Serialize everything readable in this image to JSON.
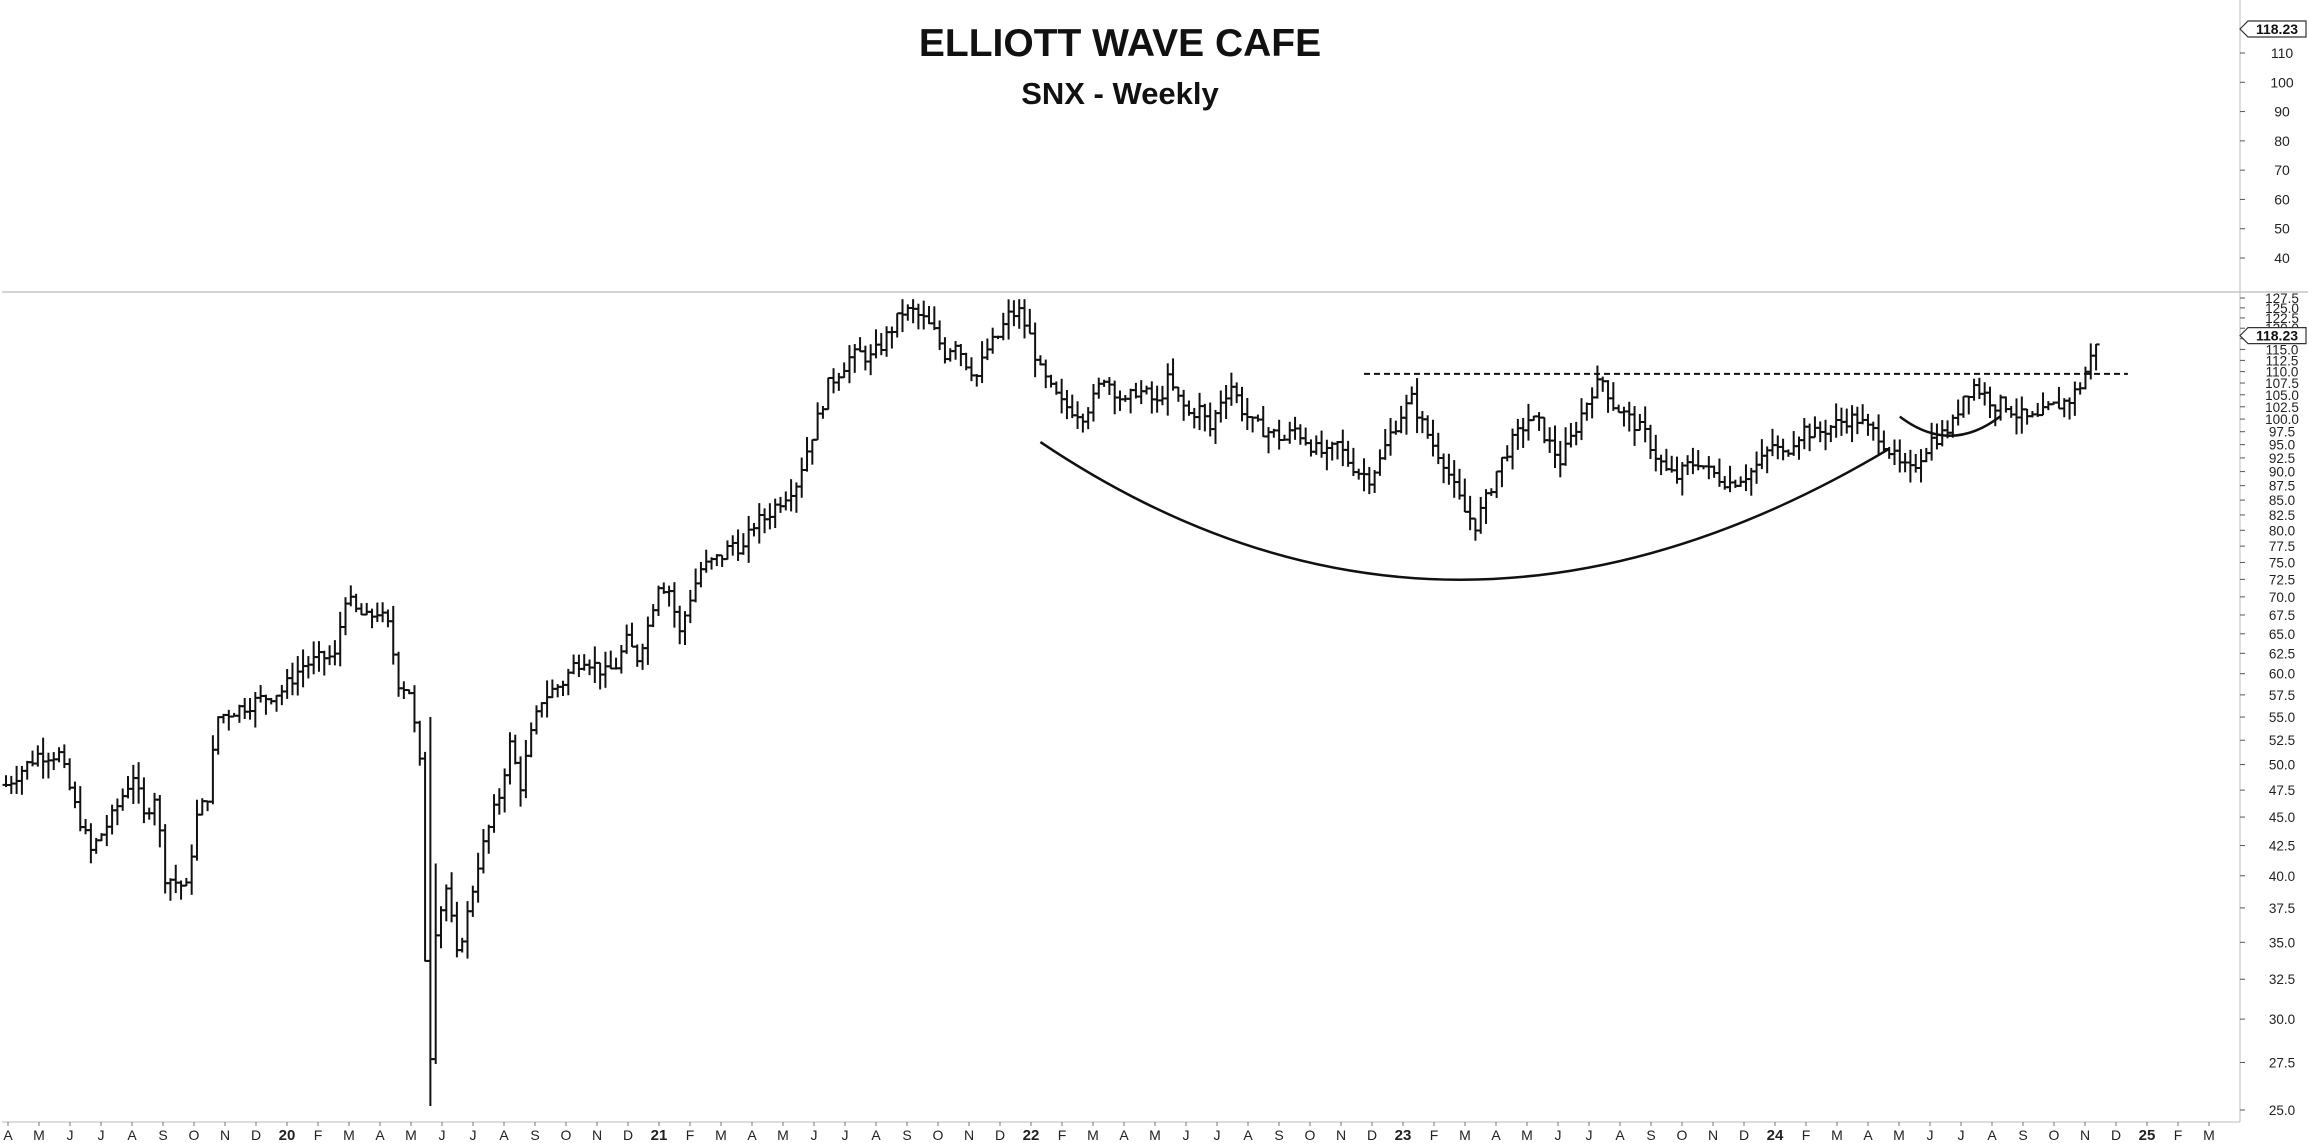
{
  "chart_data": {
    "type": "ohlc-bar",
    "title": "ELLIOTT WAVE CAFE",
    "subtitle": "SNX - Weekly",
    "upper_pane": {
      "yticks": [
        40,
        50,
        60,
        70,
        80,
        90,
        100,
        110
      ],
      "last_price_label": "118.23"
    },
    "lower_pane": {
      "scale": "log",
      "ylim": [
        25.0,
        127.5
      ],
      "yticks": [
        "25.0",
        "27.5",
        "30.0",
        "32.5",
        "35.0",
        "37.5",
        "40.0",
        "42.5",
        "45.0",
        "47.5",
        "50.0",
        "52.5",
        "55.0",
        "57.5",
        "60.0",
        "62.5",
        "65.0",
        "67.5",
        "70.0",
        "72.5",
        "75.0",
        "77.5",
        "80.0",
        "82.5",
        "85.0",
        "87.5",
        "90.0",
        "92.5",
        "95.0",
        "97.5",
        "100.0",
        "102.5",
        "105.0",
        "107.5",
        "110.0",
        "112.5",
        "115.0",
        "117.5",
        "120.0",
        "122.5",
        "125.0",
        "127.5"
      ],
      "last_price_label": "118.23",
      "resistance_level": 109.5,
      "cup_bottom_price": 72.5,
      "handle_bottom_price": 96.7
    },
    "x_axis_labels": [
      "A",
      "M",
      "J",
      "J",
      "A",
      "S",
      "O",
      "N",
      "D",
      "20",
      "F",
      "M",
      "A",
      "M",
      "J",
      "J",
      "A",
      "S",
      "O",
      "N",
      "D",
      "21",
      "F",
      "M",
      "A",
      "M",
      "J",
      "J",
      "A",
      "S",
      "O",
      "N",
      "D",
      "22",
      "F",
      "M",
      "A",
      "M",
      "J",
      "J",
      "A",
      "S",
      "O",
      "N",
      "D",
      "23",
      "F",
      "M",
      "A",
      "M",
      "J",
      "J",
      "A",
      "S",
      "O",
      "N",
      "D",
      "24",
      "F",
      "M",
      "A",
      "M",
      "J",
      "J",
      "A",
      "S",
      "O",
      "N",
      "D",
      "25",
      "F",
      "M"
    ],
    "x_axis_bold": [
      "20",
      "21",
      "22",
      "23",
      "24",
      "25"
    ],
    "weekly_close_path": [
      [
        0,
        48
      ],
      [
        6,
        51
      ],
      [
        10,
        51
      ],
      [
        13,
        46
      ],
      [
        16,
        42
      ],
      [
        20,
        45
      ],
      [
        22,
        47
      ],
      [
        24,
        49
      ],
      [
        26,
        45
      ],
      [
        28,
        47
      ],
      [
        30,
        40
      ],
      [
        34,
        39
      ],
      [
        36,
        45
      ],
      [
        38,
        47
      ],
      [
        40,
        55
      ],
      [
        44,
        56
      ],
      [
        48,
        57
      ],
      [
        52,
        58
      ],
      [
        56,
        61
      ],
      [
        60,
        62
      ],
      [
        62,
        62
      ],
      [
        64,
        70
      ],
      [
        66,
        68
      ],
      [
        68,
        67
      ],
      [
        70,
        68
      ],
      [
        72,
        66
      ],
      [
        74,
        59
      ],
      [
        76,
        58
      ],
      [
        78,
        50
      ],
      [
        79,
        34
      ],
      [
        80,
        28
      ],
      [
        81,
        36
      ],
      [
        83,
        39
      ],
      [
        85,
        34
      ],
      [
        87,
        37
      ],
      [
        89,
        41
      ],
      [
        91,
        44
      ],
      [
        93,
        47
      ],
      [
        95,
        52
      ],
      [
        97,
        48
      ],
      [
        99,
        53
      ],
      [
        101,
        57
      ],
      [
        103,
        58
      ],
      [
        105,
        59
      ],
      [
        107,
        61
      ],
      [
        109,
        62
      ],
      [
        111,
        61
      ],
      [
        113,
        60
      ],
      [
        115,
        61
      ],
      [
        117,
        64
      ],
      [
        119,
        62
      ],
      [
        121,
        66
      ],
      [
        123,
        72
      ],
      [
        125,
        71
      ],
      [
        127,
        65
      ],
      [
        129,
        70
      ],
      [
        131,
        74
      ],
      [
        133,
        75
      ],
      [
        135,
        76
      ],
      [
        137,
        78
      ],
      [
        139,
        77
      ],
      [
        141,
        81
      ],
      [
        143,
        82
      ],
      [
        145,
        84
      ],
      [
        147,
        86
      ],
      [
        149,
        88
      ],
      [
        151,
        94
      ],
      [
        153,
        100
      ],
      [
        155,
        107
      ],
      [
        157,
        110
      ],
      [
        159,
        113
      ],
      [
        161,
        114
      ],
      [
        163,
        113
      ],
      [
        165,
        116
      ],
      [
        167,
        120
      ],
      [
        169,
        124
      ],
      [
        171,
        124
      ],
      [
        173,
        122
      ],
      [
        175,
        119
      ],
      [
        177,
        114
      ],
      [
        179,
        117
      ],
      [
        181,
        112
      ],
      [
        183,
        109
      ],
      [
        185,
        115
      ],
      [
        187,
        118
      ],
      [
        189,
        123
      ],
      [
        191,
        124
      ],
      [
        193,
        118
      ],
      [
        195,
        110
      ],
      [
        197,
        106
      ],
      [
        199,
        103
      ],
      [
        201,
        102
      ],
      [
        203,
        101
      ],
      [
        205,
        104
      ],
      [
        207,
        109
      ],
      [
        209,
        106
      ],
      [
        211,
        103
      ],
      [
        213,
        106
      ],
      [
        215,
        105
      ],
      [
        217,
        103
      ],
      [
        219,
        108
      ],
      [
        221,
        104
      ],
      [
        223,
        101
      ],
      [
        225,
        102
      ],
      [
        227,
        98
      ],
      [
        229,
        104
      ],
      [
        231,
        107
      ],
      [
        233,
        102
      ],
      [
        235,
        99
      ],
      [
        237,
        98
      ],
      [
        239,
        97
      ],
      [
        241,
        96
      ],
      [
        243,
        98
      ],
      [
        245,
        96
      ],
      [
        247,
        94
      ],
      [
        249,
        93
      ],
      [
        251,
        95
      ],
      [
        253,
        92
      ],
      [
        255,
        90
      ],
      [
        257,
        89
      ],
      [
        259,
        92
      ],
      [
        261,
        97
      ],
      [
        263,
        101
      ],
      [
        265,
        104
      ],
      [
        267,
        99
      ],
      [
        269,
        95
      ],
      [
        271,
        92
      ],
      [
        273,
        87
      ],
      [
        275,
        83
      ],
      [
        277,
        81
      ],
      [
        279,
        85
      ],
      [
        281,
        90
      ],
      [
        283,
        94
      ],
      [
        285,
        97
      ],
      [
        287,
        100
      ],
      [
        289,
        99
      ],
      [
        291,
        95
      ],
      [
        293,
        92
      ],
      [
        295,
        96
      ],
      [
        297,
        101
      ],
      [
        299,
        106
      ],
      [
        301,
        108
      ],
      [
        303,
        103
      ],
      [
        305,
        101
      ],
      [
        307,
        99
      ],
      [
        309,
        97
      ],
      [
        311,
        93
      ],
      [
        313,
        90
      ],
      [
        315,
        89
      ],
      [
        317,
        91
      ],
      [
        319,
        92
      ],
      [
        321,
        90
      ],
      [
        323,
        89
      ],
      [
        325,
        88
      ],
      [
        327,
        89
      ],
      [
        329,
        90
      ],
      [
        331,
        92
      ],
      [
        333,
        95
      ],
      [
        335,
        93
      ],
      [
        337,
        96
      ],
      [
        339,
        98
      ],
      [
        341,
        97
      ],
      [
        343,
        98
      ],
      [
        345,
        99
      ],
      [
        347,
        100
      ],
      [
        349,
        100
      ],
      [
        351,
        98
      ],
      [
        353,
        97
      ],
      [
        355,
        94
      ],
      [
        357,
        91
      ],
      [
        359,
        90
      ],
      [
        361,
        93
      ],
      [
        363,
        96
      ],
      [
        365,
        97
      ],
      [
        367,
        99
      ],
      [
        369,
        105
      ],
      [
        371,
        107
      ],
      [
        373,
        105
      ],
      [
        375,
        103
      ],
      [
        377,
        103
      ],
      [
        379,
        101
      ],
      [
        381,
        100
      ],
      [
        383,
        100
      ],
      [
        385,
        102
      ],
      [
        387,
        103
      ],
      [
        389,
        104
      ],
      [
        391,
        107
      ],
      [
        393,
        113
      ],
      [
        394,
        117
      ]
    ]
  }
}
